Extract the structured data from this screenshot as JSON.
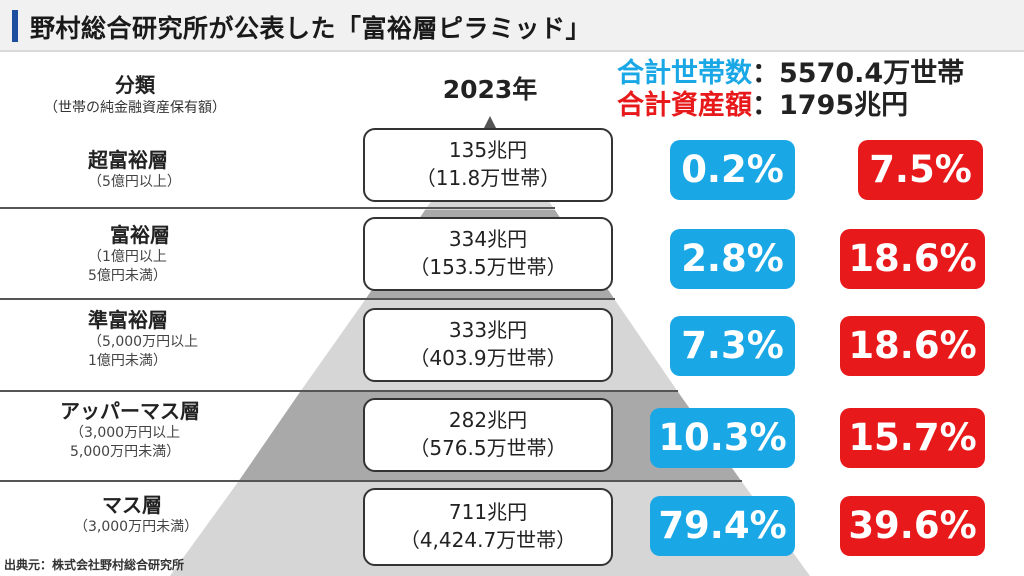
{
  "header": {
    "title": "野村総合研究所が公表した「富裕層ピラミッド」"
  },
  "column_header": {
    "main": "分類",
    "sub": "（世帯の純金融資産保有額）"
  },
  "year": "2023年",
  "totals": {
    "households_label": "合計世帯数",
    "households_value": "：5570.4万世帯",
    "assets_label": "合計資産額",
    "assets_value": "：1795兆円"
  },
  "colors": {
    "blue": "#1aa7e6",
    "red": "#e8191b",
    "pyramid_light": "#d6d6d6",
    "pyramid_dark": "#a9a9a9"
  },
  "chart_data": {
    "type": "table",
    "title": "野村総合研究所が公表した「富裕層ピラミッド」",
    "tiers": [
      {
        "name": "超富裕層",
        "range": "（5億円以上）",
        "assets": "135兆円",
        "households": "（11.8万世帯）",
        "household_share": "0.2%",
        "asset_share": "7.5%"
      },
      {
        "name": "富裕層",
        "range": "（1億円以上\n5億円未満）",
        "assets": "334兆円",
        "households": "（153.5万世帯）",
        "household_share": "2.8%",
        "asset_share": "18.6%"
      },
      {
        "name": "準富裕層",
        "range": "（5,000万円以上\n1億円未満）",
        "assets": "333兆円",
        "households": "（403.9万世帯）",
        "household_share": "7.3%",
        "asset_share": "18.6%"
      },
      {
        "name": "アッパーマス層",
        "range": "（3,000万円以上\n5,000万円未満）",
        "assets": "282兆円",
        "households": "（576.5万世帯）",
        "household_share": "10.3%",
        "asset_share": "15.7%"
      },
      {
        "name": "マス層",
        "range": "（3,000万円未満）",
        "assets": "711兆円",
        "households": "（4,424.7万世帯）",
        "household_share": "79.4%",
        "asset_share": "39.6%"
      }
    ]
  },
  "source": "出典元：株式会社野村総合研究所"
}
